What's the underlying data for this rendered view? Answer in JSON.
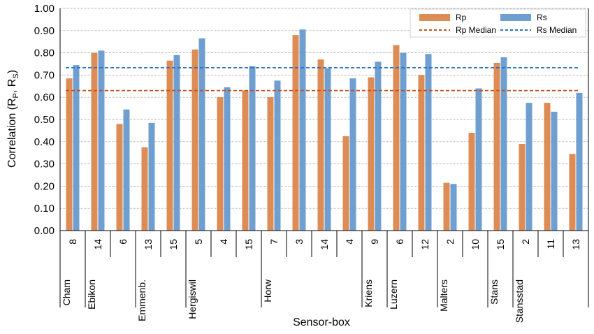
{
  "chart_data": {
    "type": "bar",
    "title": "",
    "xlabel": "Sensor-box",
    "ylabel": "Correlation (R",
    "ylabel_sub1": "P",
    "ylabel_mid": ", R",
    "ylabel_sub2": "S",
    "ylabel_end": ")",
    "ylim": [
      0,
      1.0
    ],
    "yticks": [
      "0.00",
      "0.10",
      "0.20",
      "0.30",
      "0.40",
      "0.50",
      "0.60",
      "0.70",
      "0.80",
      "0.90",
      "1.00"
    ],
    "grid": true,
    "legend_position": "top-right",
    "categories": [
      "8",
      "14",
      "6",
      "13",
      "15",
      "5",
      "4",
      "15",
      "7",
      "3",
      "14",
      "4",
      "9",
      "6",
      "12",
      "2",
      "10",
      "15",
      "2",
      "11",
      "13"
    ],
    "groups": [
      {
        "name": "Cham",
        "count": 1
      },
      {
        "name": "Ebikon",
        "count": 2
      },
      {
        "name": "Emmenb.",
        "count": 2
      },
      {
        "name": "Hergiswil",
        "count": 3
      },
      {
        "name": "Horw",
        "count": 4
      },
      {
        "name": "Kriens",
        "count": 1
      },
      {
        "name": "Luzern",
        "count": 2
      },
      {
        "name": "Malters",
        "count": 2
      },
      {
        "name": "Stans",
        "count": 1
      },
      {
        "name": "Stansstad",
        "count": 3
      }
    ],
    "series": [
      {
        "name": "Rp",
        "color": "#dd8c55",
        "values": [
          0.685,
          0.8,
          0.48,
          0.375,
          0.765,
          0.815,
          0.6,
          0.63,
          0.6,
          0.88,
          0.77,
          0.425,
          0.69,
          0.835,
          0.7,
          0.215,
          0.44,
          0.755,
          0.39,
          0.575,
          0.345
        ]
      },
      {
        "name": "Rs",
        "color": "#6f9fd0",
        "values": [
          0.745,
          0.81,
          0.545,
          0.485,
          0.79,
          0.865,
          0.645,
          0.74,
          0.675,
          0.905,
          0.73,
          0.685,
          0.76,
          0.8,
          0.795,
          0.21,
          0.64,
          0.78,
          0.575,
          0.535,
          0.62
        ]
      }
    ],
    "medians": [
      {
        "name": "Rp Median",
        "value": 0.63,
        "color": "#c8501e"
      },
      {
        "name": "Rs Median",
        "value": 0.733,
        "color": "#2a72c0"
      }
    ]
  }
}
